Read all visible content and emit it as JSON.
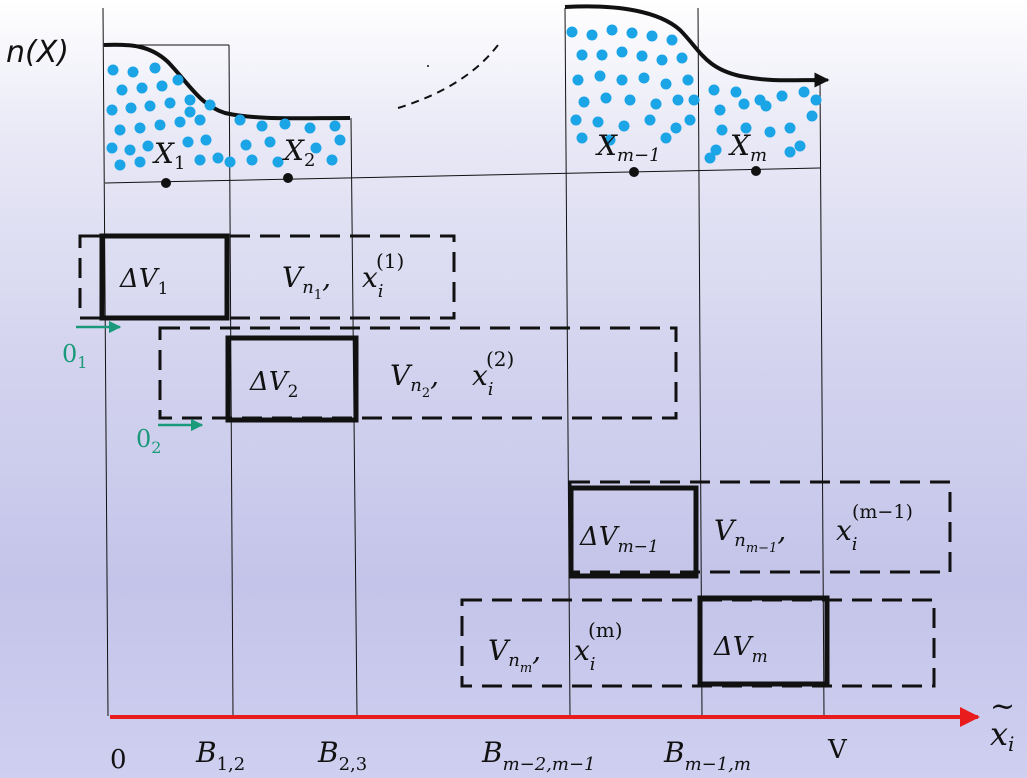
{
  "density": {
    "label": "n(X)",
    "points": [
      {
        "name": "X",
        "sub": "1"
      },
      {
        "name": "X",
        "sub": "2"
      },
      {
        "name": "X",
        "sub": "m−1"
      },
      {
        "name": "X",
        "sub": "m"
      }
    ]
  },
  "subvolumes": [
    {
      "delta_name": "ΔV",
      "delta_sub": "1",
      "v_name": "V",
      "v_sub": "n",
      "v_subsub": "1",
      "x_name": "x",
      "x_sub": "i",
      "x_sup": "(1)",
      "origin": "0",
      "origin_sub": "1"
    },
    {
      "delta_name": "ΔV",
      "delta_sub": "2",
      "v_name": "V",
      "v_sub": "n",
      "v_subsub": "2",
      "x_name": "x",
      "x_sub": "i",
      "x_sup": "(2)",
      "origin": "0",
      "origin_sub": "2"
    },
    {
      "delta_name": "ΔV",
      "delta_sub": "m−1",
      "v_name": "V",
      "v_sub": "n",
      "v_subsub": "m−1",
      "x_name": "x",
      "x_sub": "i",
      "x_sup": "(m−1)"
    },
    {
      "delta_name": "ΔV",
      "delta_sub": "m",
      "v_name": "V",
      "v_sub": "n",
      "v_subsub": "m",
      "x_name": "x",
      "x_sub": "i",
      "x_sup": "(m)"
    }
  ],
  "axis": {
    "label_name": "x",
    "label_sub": "i",
    "label_accent": "~",
    "color": "#e81c1c",
    "ticks": [
      {
        "main": "0",
        "sub": ""
      },
      {
        "main": "B",
        "sub": "1,2"
      },
      {
        "main": "B",
        "sub": "2,3"
      },
      {
        "main": "B",
        "sub": "m−2,m−1"
      },
      {
        "main": "B",
        "sub": "m−1,m"
      },
      {
        "main": "V",
        "sub": ""
      }
    ]
  },
  "colors": {
    "dots": "#1ba5e6",
    "origin_arrow": "#1a9a7a",
    "lines": "#111111"
  }
}
